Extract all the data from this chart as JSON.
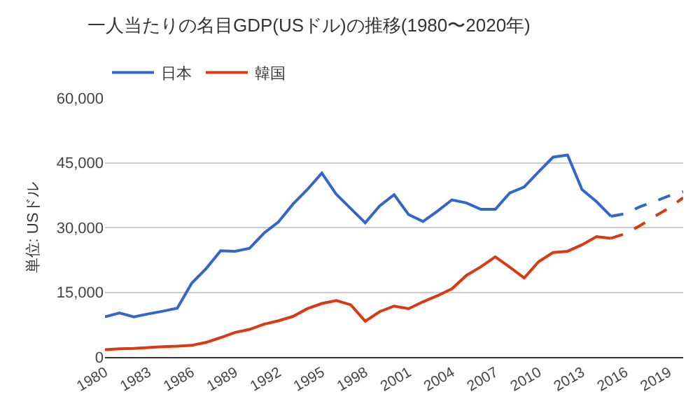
{
  "chart_data": {
    "type": "line",
    "title": "一人当たりの名目GDP(USドル)の推移(1980〜2020年)",
    "ylabel": "単位: USドル",
    "xlim": [
      1980,
      2020
    ],
    "xticks": [
      1980,
      1983,
      1986,
      1989,
      1992,
      1995,
      1998,
      2001,
      2004,
      2007,
      2010,
      2013,
      2016,
      2019
    ],
    "ylim": [
      0,
      60000
    ],
    "yticks": [
      {
        "value": 0,
        "label": "0"
      },
      {
        "value": 15000,
        "label": "15,000"
      },
      {
        "value": 30000,
        "label": "30,000"
      },
      {
        "value": 45000,
        "label": "45,000"
      },
      {
        "value": 60000,
        "label": "60,000"
      }
    ],
    "grid": "y",
    "legend": "top left",
    "marker": "none",
    "series": [
      {
        "name": "日本",
        "color": "#3366cc",
        "line_style": "solid",
        "x": [
          1980,
          1981,
          1982,
          1983,
          1984,
          1985,
          1986,
          1987,
          1988,
          1989,
          1990,
          1991,
          1992,
          1993,
          1994,
          1995,
          1996,
          1997,
          1998,
          1999,
          2000,
          2001,
          2002,
          2003,
          2004,
          2005,
          2006,
          2007,
          2008,
          2009,
          2010,
          2011,
          2012,
          2013,
          2014,
          2015
        ],
        "values": [
          9300,
          10200,
          9300,
          10000,
          10600,
          11300,
          17100,
          20500,
          24600,
          24500,
          25200,
          28700,
          31300,
          35400,
          38800,
          42600,
          37700,
          34400,
          31100,
          35000,
          37600,
          33000,
          31400,
          33800,
          36400,
          35700,
          34200,
          34200,
          38000,
          39400,
          42900,
          46300,
          46800,
          38800,
          36000,
          32600
        ]
      },
      {
        "name": "韓国",
        "color": "#dc3912",
        "line_style": "solid",
        "x": [
          1980,
          1981,
          1982,
          1983,
          1984,
          1985,
          1986,
          1987,
          1988,
          1989,
          1990,
          1991,
          1992,
          1993,
          1994,
          1995,
          1996,
          1997,
          1998,
          1999,
          2000,
          2001,
          2002,
          2003,
          2004,
          2005,
          2006,
          2007,
          2008,
          2009,
          2010,
          2011,
          2012,
          2013,
          2014,
          2015
        ],
        "values": [
          1700,
          1900,
          2000,
          2200,
          2400,
          2500,
          2700,
          3400,
          4500,
          5700,
          6400,
          7600,
          8400,
          9400,
          11200,
          12400,
          13100,
          12100,
          8300,
          10500,
          11800,
          11200,
          12800,
          14200,
          15800,
          18900,
          20900,
          23200,
          20800,
          18300,
          22100,
          24200,
          24500,
          26000,
          27900,
          27500
        ]
      },
      {
        "color": "#3366cc",
        "line_style": "dashed",
        "x": [
          2015,
          2016,
          2017,
          2018,
          2019,
          2020
        ],
        "values": [
          32600,
          33200,
          34800,
          36000,
          37300,
          38300
        ]
      },
      {
        "color": "#dc3912",
        "line_style": "dashed",
        "x": [
          2015,
          2016,
          2017,
          2018,
          2019,
          2020
        ],
        "values": [
          27500,
          28600,
          30400,
          32500,
          34500,
          36900
        ]
      }
    ]
  }
}
